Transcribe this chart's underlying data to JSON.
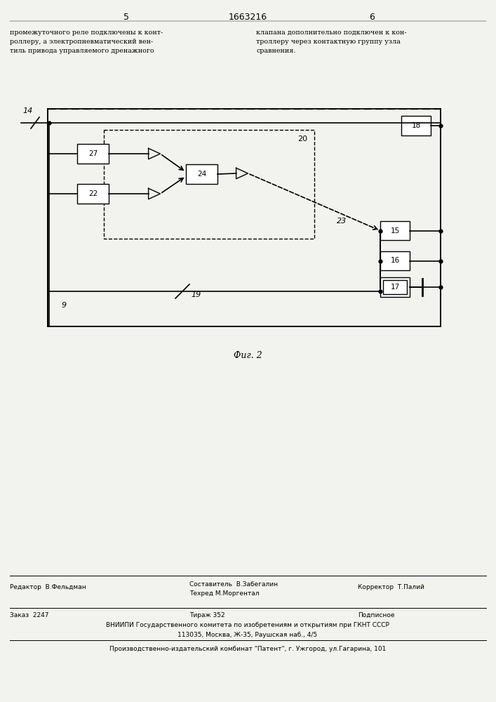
{
  "bg_color": "#f2f2ee",
  "page_width": 7.07,
  "page_height": 10.0,
  "header_left_num": "5",
  "header_center_num": "1663216",
  "header_right_num": "6",
  "text_left": "промежуточного реле подключены к конт-\nроллеру, а электропневматический вен-\nтиль привода управляемого дренажного",
  "text_right": "клапана дополнительно подключен к кон-\nтроллеру через контактную группу узла\nсравнения.",
  "fig_label": "Фиг. 2",
  "footer_line1_col1": "Редактор  В.Фельдман",
  "footer_line1_col2": "Составитель  В.Забегалин\nТехред М.Моргентал",
  "footer_line1_col3": "Корректор  Т.Палий",
  "footer_line2_col1": "Заказ  2247",
  "footer_line2_col2": "Тираж 352",
  "footer_line2_col3": "Подписное",
  "footer_vnipi": "ВНИИПИ Государственного комитета по изобретениям и открытиям при ГКНТ СССР",
  "footer_address": "113035, Москва, Ж-35, Раушская наб., 4/5",
  "footer_publisher": "Производственно-издательский комбинат \"Патент\", г. Ужгород, ул.Гагарина, 101"
}
